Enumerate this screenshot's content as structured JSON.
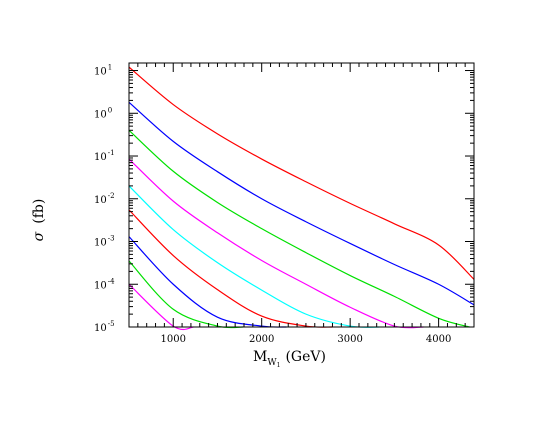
{
  "chart_data": {
    "type": "line",
    "title": "",
    "xlabel": {
      "main": "M",
      "subscript": "W",
      "subsubscript": "1",
      "unit": "(GeV)"
    },
    "ylabel": {
      "symbol": "σ",
      "unit": "(fb)"
    },
    "xlim": [
      500,
      4400
    ],
    "ylim": [
      1e-05,
      15
    ],
    "yscale": "log",
    "grid": false,
    "x_ticks": [
      1000,
      2000,
      3000,
      4000
    ],
    "x_tick_labels": [
      "1000",
      "2000",
      "3000",
      "4000"
    ],
    "y_ticks": [
      {
        "value": 10,
        "base": "10",
        "exp": "1"
      },
      {
        "value": 1,
        "base": "10",
        "exp": "0"
      },
      {
        "value": 0.1,
        "base": "10",
        "exp": "-1"
      },
      {
        "value": 0.01,
        "base": "10",
        "exp": "-2"
      },
      {
        "value": 0.001,
        "base": "10",
        "exp": "-3"
      },
      {
        "value": 0.0001,
        "base": "10",
        "exp": "-4"
      },
      {
        "value": 1e-05,
        "base": "10",
        "exp": "-5"
      }
    ],
    "series": [
      {
        "color": "#ff0000",
        "x": [
          500,
          1000,
          1500,
          2000,
          2500,
          3000,
          3500,
          4000,
          4400
        ],
        "y": [
          12,
          1.6,
          0.33,
          0.085,
          0.025,
          0.0078,
          0.0026,
          0.00083,
          0.00013
        ]
      },
      {
        "color": "#0000ff",
        "x": [
          500,
          1000,
          1500,
          2000,
          2500,
          3000,
          3500,
          4000,
          4400
        ],
        "y": [
          1.8,
          0.22,
          0.043,
          0.01,
          0.0029,
          0.0009,
          0.00029,
          0.0001,
          3.3e-05
        ]
      },
      {
        "color": "#00e000",
        "x": [
          500,
          1000,
          1500,
          2000,
          2500,
          3000,
          3500,
          4000,
          4350
        ],
        "y": [
          0.4,
          0.044,
          0.0082,
          0.002,
          0.00055,
          0.00016,
          5.2e-05,
          1.6e-05,
          1e-05
        ]
      },
      {
        "color": "#ff00ff",
        "x": [
          500,
          1000,
          1500,
          2000,
          2500,
          3000,
          3500,
          3830
        ],
        "y": [
          0.085,
          0.0088,
          0.0016,
          0.00036,
          0.0001,
          2.9e-05,
          1.05e-05,
          1e-05
        ]
      },
      {
        "color": "#00ffff",
        "x": [
          500,
          1000,
          1500,
          2000,
          2500,
          3000,
          3330
        ],
        "y": [
          0.02,
          0.0019,
          0.00032,
          7.3e-05,
          2e-05,
          1.05e-05,
          1e-05
        ]
      },
      {
        "color": "#ff0000",
        "x": [
          500,
          1000,
          1500,
          2000,
          2500,
          2800
        ],
        "y": [
          0.0055,
          0.00047,
          7.5e-05,
          1.8e-05,
          1.05e-05,
          1e-05
        ]
      },
      {
        "color": "#0000ff",
        "x": [
          500,
          1000,
          1500,
          2000,
          2280
        ],
        "y": [
          0.0013,
          0.0001,
          1.7e-05,
          1.05e-05,
          1e-05
        ]
      },
      {
        "color": "#00e000",
        "x": [
          500,
          1000,
          1500,
          1790
        ],
        "y": [
          0.00035,
          2.6e-05,
          1.05e-05,
          1e-05
        ]
      },
      {
        "color": "#ff00ff",
        "x": [
          500,
          1000,
          1230
        ],
        "y": [
          0.0001,
          1.05e-05,
          1e-05
        ]
      }
    ]
  }
}
